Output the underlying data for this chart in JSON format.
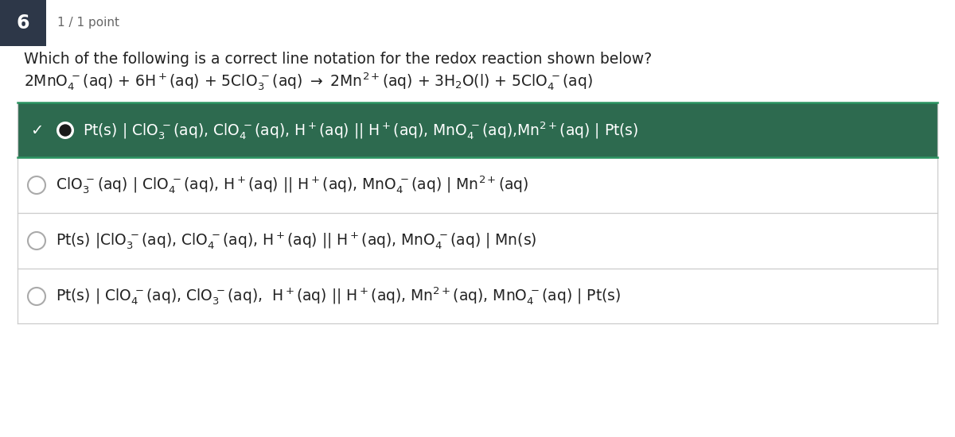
{
  "background_color": "#ffffff",
  "question_number": "6",
  "question_number_bg": "#2d3748",
  "points_text": "1 / 1 point",
  "question_line1": "Which of the following is a correct line notation for the redox reaction shown below?",
  "correct_answer_bg": "#2d6a4f",
  "correct_answer_border": "#2a9461",
  "checkmark": "✓",
  "divider_color": "#cccccc",
  "text_color": "#222222",
  "radio_border": "#aaaaaa",
  "radio_fill_color": "#1a1a1a"
}
